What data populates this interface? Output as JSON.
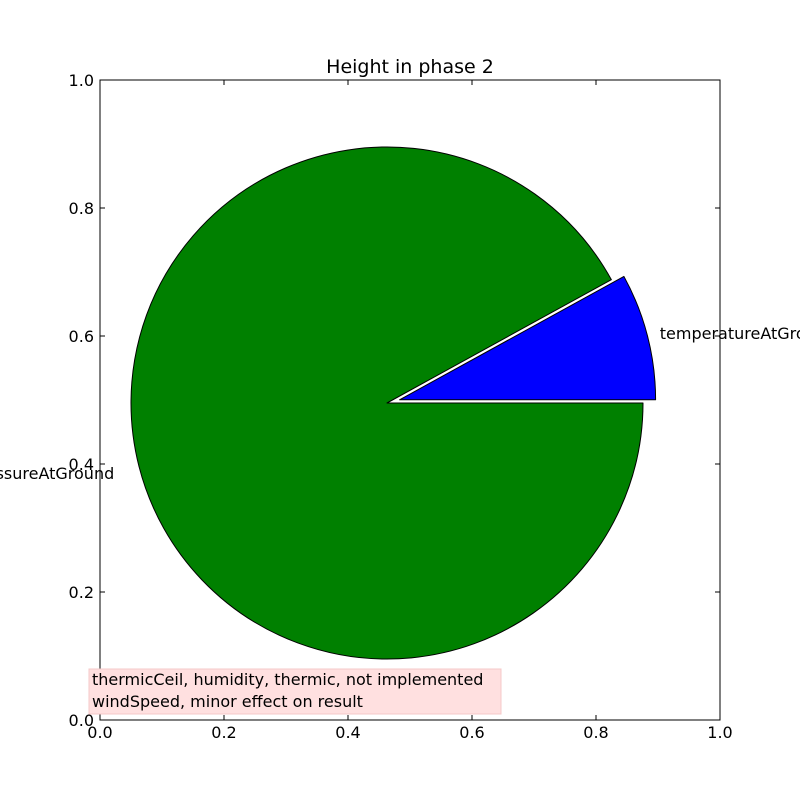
{
  "chart_data": {
    "type": "pie",
    "title": "Height in phase 2",
    "slices": [
      {
        "label": "temperatureAtGround",
        "value": 8,
        "color": "#0000ff",
        "explode": true
      },
      {
        "label": "pressureAtGround",
        "value": 92,
        "color": "#008000",
        "explode": false
      }
    ],
    "start_angle": 0,
    "xlim": [
      0.0,
      1.0
    ],
    "ylim": [
      0.0,
      1.0
    ],
    "x_ticks": [
      "0.0",
      "0.2",
      "0.4",
      "0.6",
      "0.8",
      "1.0"
    ],
    "y_ticks": [
      "0.0",
      "0.2",
      "0.4",
      "0.6",
      "0.8",
      "1.0"
    ],
    "grid": false,
    "annotation": {
      "lines": [
        "thermicCeil, humidity, thermic, not implemented",
        "windSpeed, minor effect on result"
      ],
      "background": "#ffe0e0"
    }
  }
}
